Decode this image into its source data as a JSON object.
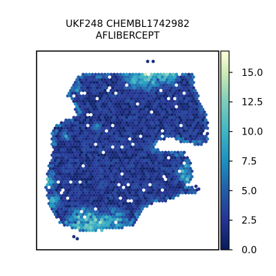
{
  "chart_data": {
    "type": "heatmap",
    "subtype": "spatial-hexbin",
    "title_line1": "UKF248 CHEMBL1742982",
    "title_line2": "AFLIBERCEPT",
    "xlabel": "",
    "ylabel": "",
    "axes_ticks_visible": false,
    "grid": false,
    "colorbar": {
      "colormap": "YlGnBu_r",
      "vmin": 0.0,
      "vmax": 16.8,
      "ticks": [
        "0.0",
        "2.5",
        "5.0",
        "7.5",
        "10.0",
        "12.5",
        "15.0"
      ],
      "tick_values": [
        0.0,
        2.5,
        5.0,
        7.5,
        10.0,
        12.5,
        15.0
      ],
      "position": "right"
    },
    "value_summary": {
      "typical_range": [
        0.5,
        4.0
      ],
      "hotspots": [
        "top-right rim",
        "bottom-left rim",
        "left edge",
        "right edge lower lobe"
      ],
      "hotspot_range": [
        6.0,
        16.0
      ]
    },
    "colors": {
      "low": "#1f2d6e",
      "mid_low": "#2b58a4",
      "mid": "#3aa6c2",
      "mid_high": "#8ed3b4",
      "high": "#ffffd9"
    }
  }
}
